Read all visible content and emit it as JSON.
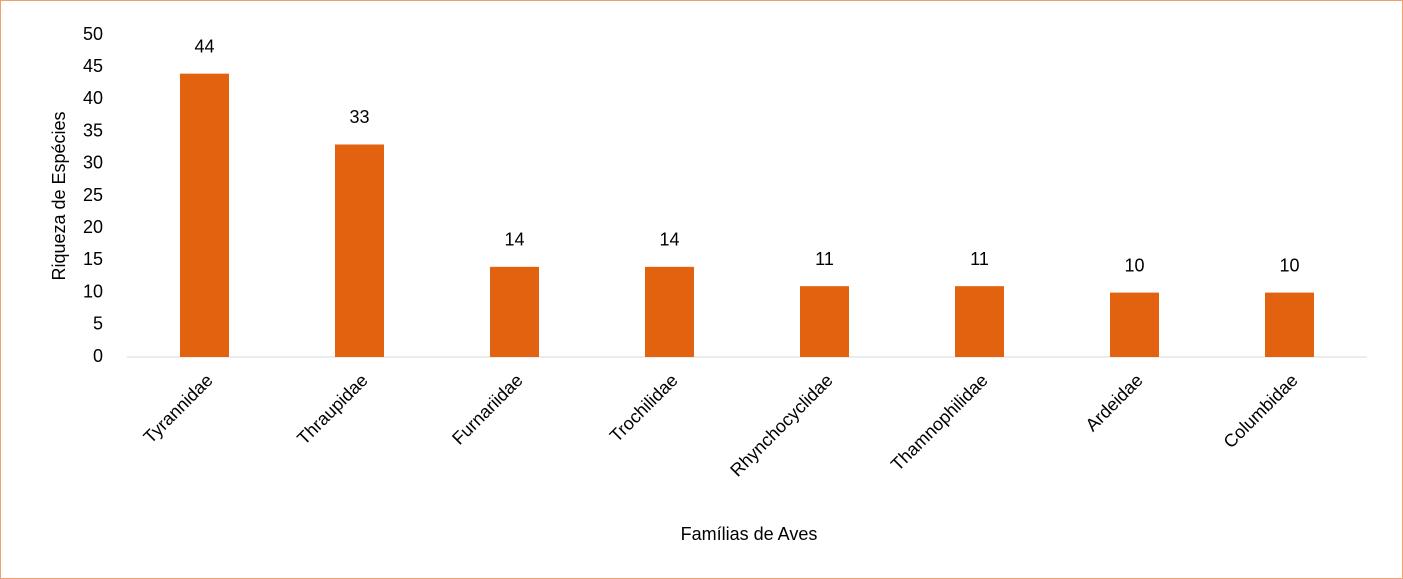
{
  "chart_data": {
    "type": "bar",
    "categories": [
      "Tyrannidae",
      "Thraupidae",
      "Furnariidae",
      "Trochilidae",
      "Rhynchocyclidae",
      "Thamnophilidae",
      "Ardeidae",
      "Columbidae"
    ],
    "values": [
      44,
      33,
      14,
      14,
      11,
      11,
      10,
      10
    ],
    "color": "#e36210",
    "x_label": "Famílias de Aves",
    "y_label": "Riqueza de Espécies",
    "ylim": [
      0,
      50
    ],
    "yticks": [
      0,
      5,
      10,
      15,
      20,
      25,
      30,
      35,
      40,
      45,
      50
    ],
    "grid": false,
    "data_labels": true
  }
}
